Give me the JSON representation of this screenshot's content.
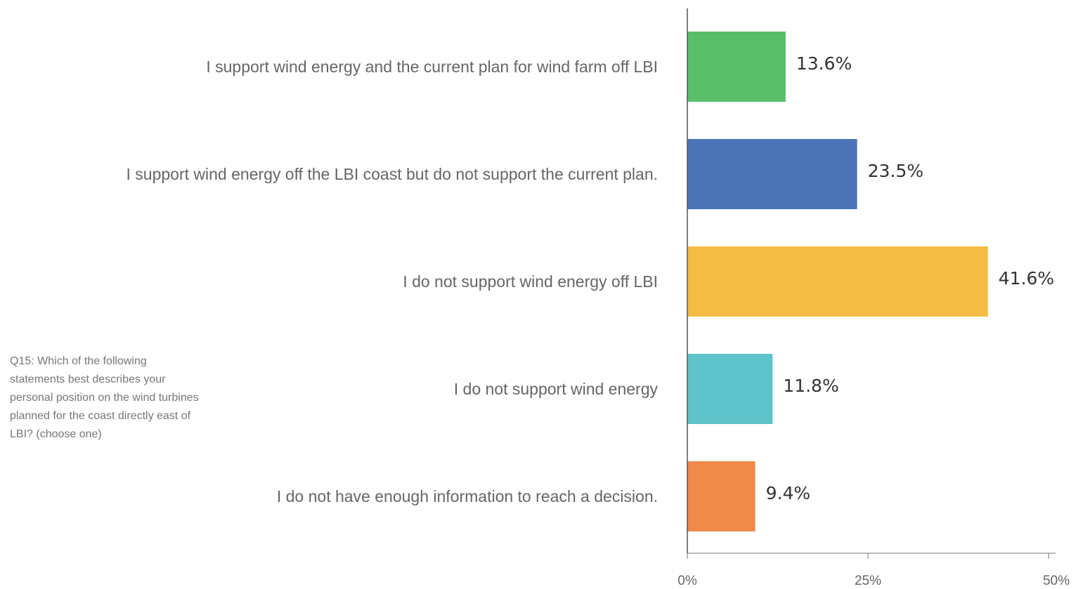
{
  "chart_data": {
    "type": "bar",
    "orientation": "horizontal",
    "categories": [
      "I support wind energy and the current plan for wind farm off LBI",
      "I support wind energy off the LBI coast but do not support the current plan.",
      "I do not support wind energy off LBI",
      "I do not support wind energy",
      "I do not have enough information to reach a decision."
    ],
    "values": [
      13.6,
      23.5,
      41.6,
      11.8,
      9.4
    ],
    "value_labels": [
      "13.6%",
      "23.5%",
      "41.6%",
      "11.8%",
      "9.4%"
    ],
    "colors": [
      "#59BE6A",
      "#4A74B6",
      "#F4BC42",
      "#5FC3CB",
      "#F08A4B"
    ],
    "xlim": [
      0,
      50
    ],
    "xticks": [
      0,
      25,
      50
    ],
    "xtick_labels": [
      "0%",
      "25%",
      "50%"
    ],
    "grid": false,
    "legend": "none"
  },
  "question": "Q15: Which of the following statements best describes your personal position on the wind turbines planned for the coast directly east of LBI? (choose one)"
}
